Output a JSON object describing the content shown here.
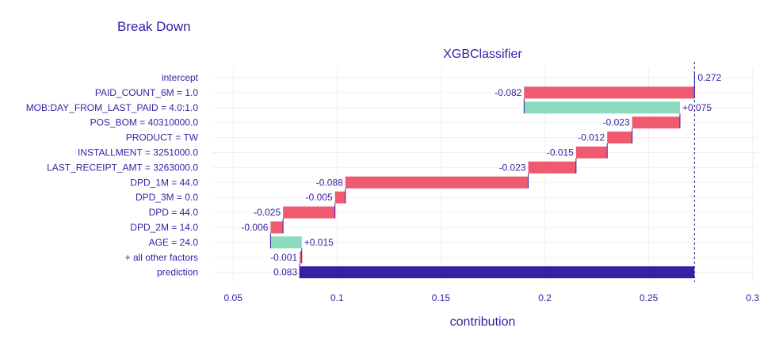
{
  "page_title": "Break Down",
  "chart_data": {
    "type": "bar",
    "subtitle": "XGBClassifier",
    "xlabel": "contribution",
    "xlim": [
      0.04,
      0.302
    ],
    "xticks": [
      0.05,
      0.1,
      0.15,
      0.2,
      0.25,
      0.3
    ],
    "xtick_labels": [
      "0.05",
      "0.1",
      "0.15",
      "0.2",
      "0.25",
      "0.3"
    ],
    "intercept_value": 0.272,
    "grid": true,
    "colors": {
      "positive": "#8bdcbe",
      "negative": "#f05a71",
      "prediction": "#371ea3",
      "text": "#371ea3",
      "grid": "#f0f0f4"
    },
    "rows": [
      {
        "label": "intercept",
        "value_label": "0.272",
        "start": 0.272,
        "end": 0.272,
        "kind": "intercept"
      },
      {
        "label": "PAID_COUNT_6M = 1.0",
        "value_label": "-0.082",
        "start": 0.272,
        "end": 0.19,
        "kind": "negative"
      },
      {
        "label": "MOB:DAY_FROM_LAST_PAID = 4.0:1.0",
        "value_label": "+0.075",
        "start": 0.19,
        "end": 0.265,
        "kind": "positive"
      },
      {
        "label": "POS_BOM = 40310000.0",
        "value_label": "-0.023",
        "start": 0.265,
        "end": 0.242,
        "kind": "negative"
      },
      {
        "label": "PRODUCT = TW",
        "value_label": "-0.012",
        "start": 0.242,
        "end": 0.23,
        "kind": "negative"
      },
      {
        "label": "INSTALLMENT = 3251000.0",
        "value_label": "-0.015",
        "start": 0.23,
        "end": 0.215,
        "kind": "negative"
      },
      {
        "label": "LAST_RECEIPT_AMT = 3263000.0",
        "value_label": "-0.023",
        "start": 0.215,
        "end": 0.192,
        "kind": "negative"
      },
      {
        "label": "DPD_1M = 44.0",
        "value_label": "-0.088",
        "start": 0.192,
        "end": 0.104,
        "kind": "negative"
      },
      {
        "label": "DPD_3M = 0.0",
        "value_label": "-0.005",
        "start": 0.104,
        "end": 0.099,
        "kind": "negative"
      },
      {
        "label": "DPD = 44.0",
        "value_label": "-0.025",
        "start": 0.099,
        "end": 0.074,
        "kind": "negative"
      },
      {
        "label": "DPD_2M = 14.0",
        "value_label": "-0.006",
        "start": 0.074,
        "end": 0.068,
        "kind": "negative"
      },
      {
        "label": "AGE = 24.0",
        "value_label": "+0.015",
        "start": 0.068,
        "end": 0.083,
        "kind": "positive"
      },
      {
        "label": "+ all other factors",
        "value_label": "-0.001",
        "start": 0.083,
        "end": 0.082,
        "kind": "negative"
      },
      {
        "label": "prediction",
        "value_label": "0.083",
        "start": 0.082,
        "end": 0.272,
        "kind": "prediction"
      }
    ]
  }
}
